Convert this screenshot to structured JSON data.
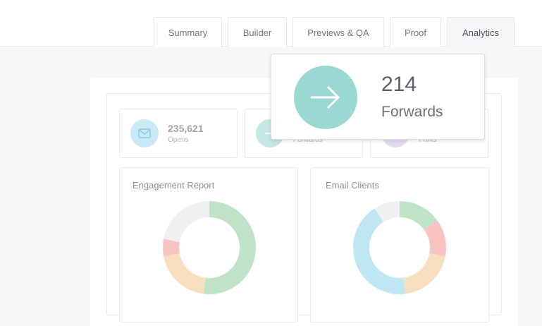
{
  "tabs": [
    {
      "label": "Summary",
      "active": false
    },
    {
      "label": "Builder",
      "active": false
    },
    {
      "label": "Previews & QA",
      "active": false
    },
    {
      "label": "Proof",
      "active": false
    },
    {
      "label": "Analytics",
      "active": true
    }
  ],
  "stats": [
    {
      "value": "235,621",
      "label": "Opens",
      "icon": "envelope-icon",
      "color": "#c9e9f6"
    },
    {
      "value": "",
      "label": "Forwards",
      "icon": "arrow-right-icon",
      "color": "#c6e8e4"
    },
    {
      "value": "",
      "label": "Prints",
      "icon": "printer-icon",
      "color": "#e3dcef"
    }
  ],
  "popover": {
    "value": "214",
    "label": "Forwards",
    "icon": "arrow-right-icon",
    "color": "#9ad9d1"
  },
  "panels": {
    "engagement": {
      "title": "Engagement Report"
    },
    "clients": {
      "title": "Email Clients"
    }
  },
  "chart_data": [
    {
      "type": "pie",
      "title": "Engagement Report",
      "donut": true,
      "values": [
        52,
        20,
        6,
        22
      ],
      "colors": [
        "#bfe3c7",
        "#f9dfbf",
        "#f8c3c0",
        "#eef0f2"
      ]
    },
    {
      "type": "pie",
      "title": "Email Clients",
      "donut": true,
      "values": [
        15,
        13,
        20,
        43,
        9
      ],
      "colors": [
        "#bfe3c7",
        "#f8c3c0",
        "#f9dfbf",
        "#bfe6f3",
        "#eef0f2"
      ]
    }
  ]
}
